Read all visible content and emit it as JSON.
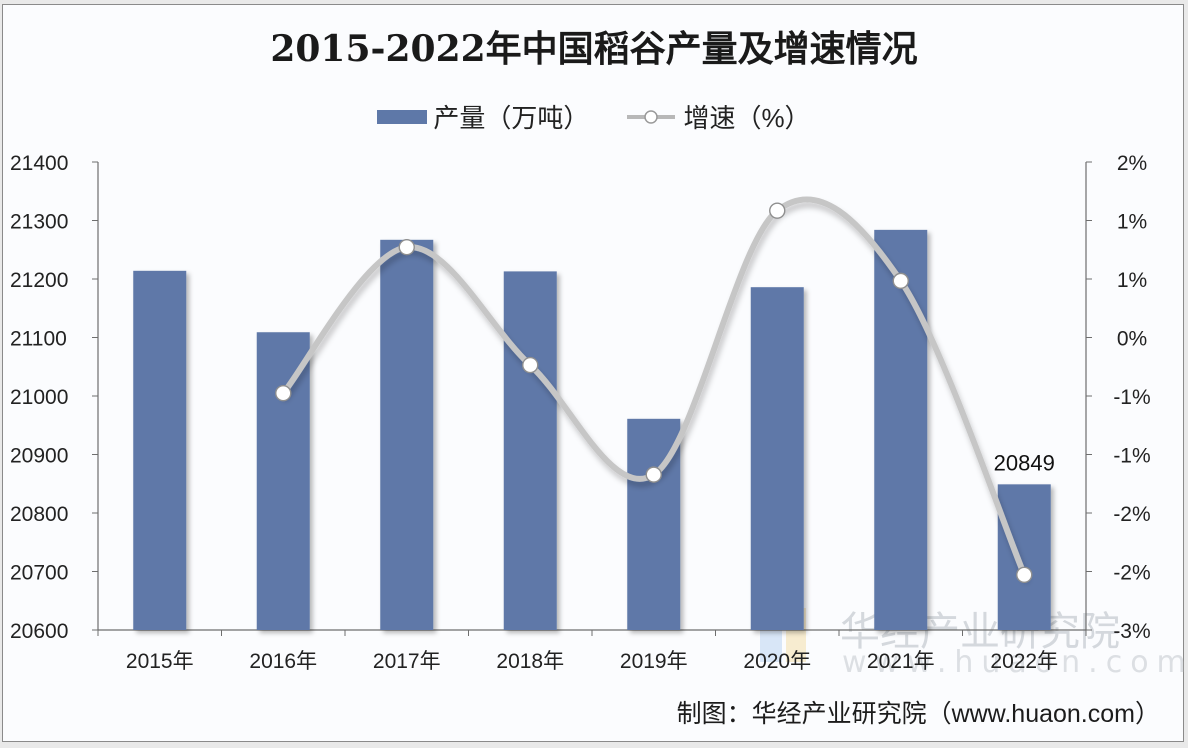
{
  "title": "2015-2022年中国稻谷产量及增速情况",
  "legend": {
    "bar_label": "产量（万吨）",
    "line_label": "增速（%）"
  },
  "credit": "制图：华经产业研究院（www.huaon.com）",
  "watermark": {
    "text": "华经产业研究院",
    "url": "www.huaon.com"
  },
  "colors": {
    "bar": "#5e78a8",
    "line": "#c6c6c6",
    "marker_fill": "#ffffff",
    "axis": "#6e6e6e"
  },
  "chart_data": {
    "type": "bar+line",
    "title": "2015-2022年中国稻谷产量及增速情况",
    "categories": [
      "2015年",
      "2016年",
      "2017年",
      "2018年",
      "2019年",
      "2020年",
      "2021年",
      "2022年"
    ],
    "series": [
      {
        "name": "产量（万吨）",
        "type": "bar",
        "axis": "left",
        "values": [
          21214,
          21109,
          21267,
          21213,
          20961,
          21186,
          21284,
          20849
        ]
      },
      {
        "name": "增速（%）",
        "type": "line",
        "axis": "right",
        "smooth": true,
        "values": [
          null,
          -0.47,
          1.09,
          -0.17,
          -1.34,
          1.48,
          0.73,
          -2.41
        ]
      }
    ],
    "data_labels": [
      {
        "category": "2022年",
        "series": "产量（万吨）",
        "text": "20849"
      }
    ],
    "left_axis": {
      "ylim": [
        20600,
        21400
      ],
      "ticks": [
        "21400",
        "21300",
        "21200",
        "21100",
        "21000",
        "20900",
        "20800",
        "20700",
        "20600"
      ]
    },
    "right_axis": {
      "ylim": [
        -3,
        2
      ],
      "ticks": [
        "2%",
        "1%",
        "1%",
        "0%",
        "-1%",
        "-1%",
        "-2%",
        "-2%",
        "-3%"
      ]
    },
    "xlabel": "",
    "ylabel": "",
    "grid": false,
    "legend_position": "top"
  }
}
